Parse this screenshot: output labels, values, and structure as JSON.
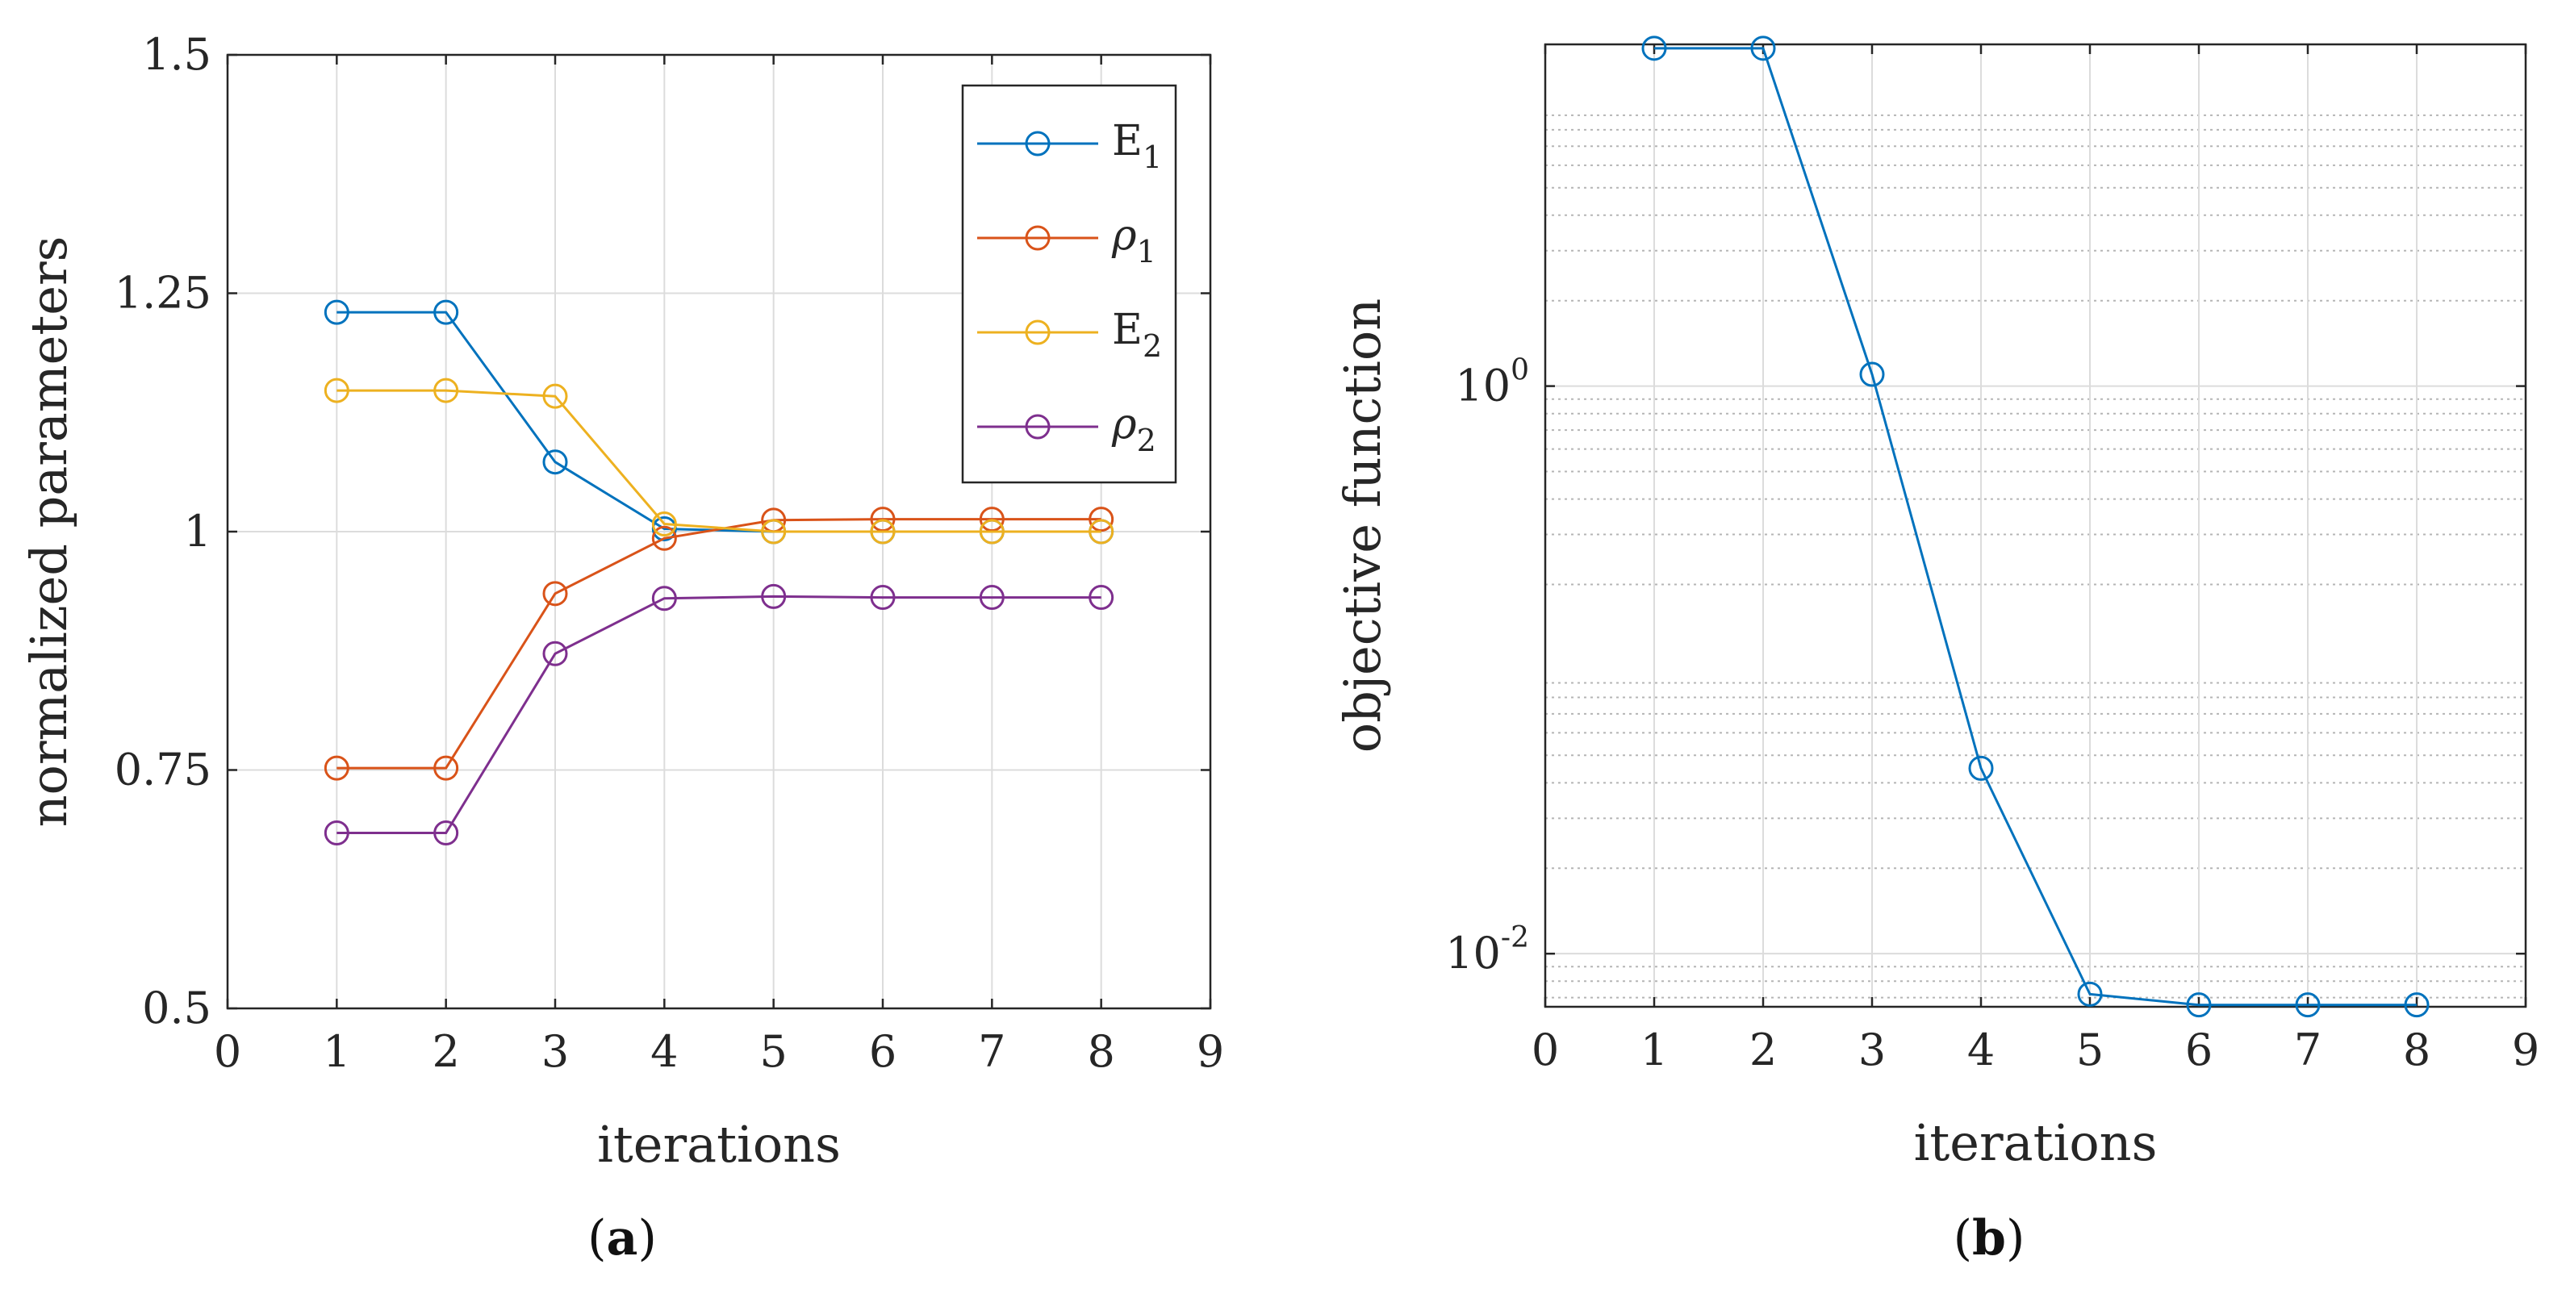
{
  "chart_data": [
    {
      "type": "line",
      "panel": "a",
      "caption_label": "a",
      "xlabel": "iterations",
      "ylabel": "normalized parameters",
      "xlim": [
        0,
        9
      ],
      "ylim": [
        0.5,
        1.5
      ],
      "xticks": [
        0,
        1,
        2,
        3,
        4,
        5,
        6,
        7,
        8,
        9
      ],
      "yticks": [
        0.5,
        0.75,
        1,
        1.25,
        1.5
      ],
      "ytick_labels": [
        "0.5",
        "0.75",
        "1",
        "1.25",
        "1.5"
      ],
      "grid": true,
      "legend_position": "top-right",
      "x": [
        1,
        2,
        3,
        4,
        5,
        6,
        7,
        8
      ],
      "series": [
        {
          "name": "E1",
          "legend": {
            "base": "E",
            "sub": "1",
            "italic": false
          },
          "color": "#0072BD",
          "values": [
            1.23,
            1.23,
            1.073,
            1.003,
            1.0,
            1.0,
            1.0,
            1.0
          ]
        },
        {
          "name": "ρ1",
          "legend": {
            "base": "ρ",
            "sub": "1",
            "italic": true
          },
          "color": "#D95319",
          "values": [
            0.752,
            0.752,
            0.935,
            0.993,
            1.012,
            1.013,
            1.013,
            1.013
          ]
        },
        {
          "name": "E2",
          "legend": {
            "base": "E",
            "sub": "2",
            "italic": false
          },
          "color": "#EDB120",
          "values": [
            1.148,
            1.148,
            1.142,
            1.008,
            1.0,
            1.0,
            1.0,
            1.0
          ]
        },
        {
          "name": "ρ2",
          "legend": {
            "base": "ρ",
            "sub": "2",
            "italic": true
          },
          "color": "#7E2F8E",
          "values": [
            0.684,
            0.684,
            0.872,
            0.93,
            0.932,
            0.931,
            0.931,
            0.931
          ]
        }
      ]
    },
    {
      "type": "line",
      "panel": "b",
      "caption_label": "b",
      "xlabel": "iterations",
      "ylabel": "objective function",
      "yscale": "log",
      "xlim": [
        0,
        9
      ],
      "ylim": [
        0.0065,
        16
      ],
      "xticks": [
        0,
        1,
        2,
        3,
        4,
        5,
        6,
        7,
        8,
        9
      ],
      "yticks": [
        {
          "value": 0.01,
          "base": "10",
          "exp": "-2"
        },
        {
          "value": 1,
          "base": "10",
          "exp": "0"
        }
      ],
      "grid": true,
      "minor_grid": true,
      "x": [
        1,
        2,
        3,
        4,
        5,
        6,
        7,
        8
      ],
      "series": [
        {
          "name": "objective function",
          "color": "#0072BD",
          "values": [
            15.5,
            15.5,
            1.1,
            0.045,
            0.0072,
            0.0066,
            0.0066,
            0.0066
          ]
        }
      ]
    }
  ]
}
